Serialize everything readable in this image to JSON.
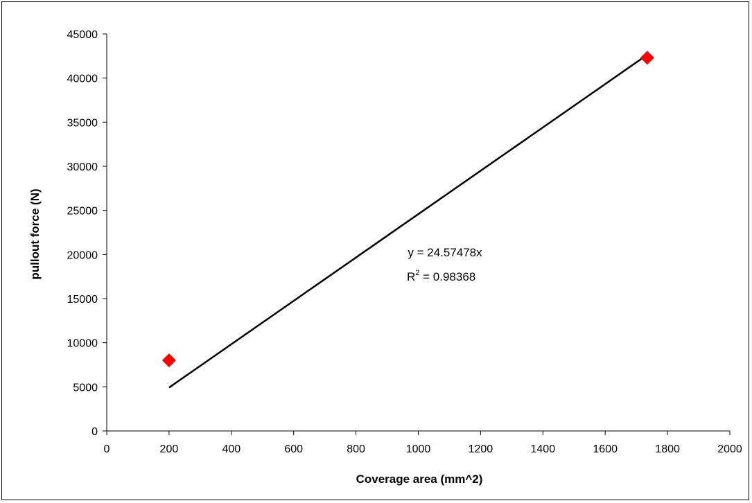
{
  "chart_data": {
    "type": "scatter",
    "title": "",
    "xlabel": "Coverage area (mm^2)",
    "ylabel": "pullout force (N)",
    "xlim": [
      0,
      2000
    ],
    "ylim": [
      0,
      45000
    ],
    "xticks": [
      0,
      200,
      400,
      600,
      800,
      1000,
      1200,
      1400,
      1600,
      1800,
      2000
    ],
    "yticks": [
      0,
      5000,
      10000,
      15000,
      20000,
      25000,
      30000,
      35000,
      40000,
      45000
    ],
    "grid": false,
    "legend": "none",
    "series": [
      {
        "marker": "diamond",
        "color": "#ff0000",
        "points": [
          {
            "x": 200,
            "y": 8000
          },
          {
            "x": 1735,
            "y": 42300
          }
        ]
      }
    ],
    "trendline": {
      "color": "#000000",
      "slope": 24.57478,
      "x_start": 200,
      "x_end": 1735
    },
    "annotations": {
      "equation": "y = 24.57478x",
      "r2_prefix": "R",
      "r2_superscript": "2",
      "r2_value": " = 0.98368"
    }
  }
}
